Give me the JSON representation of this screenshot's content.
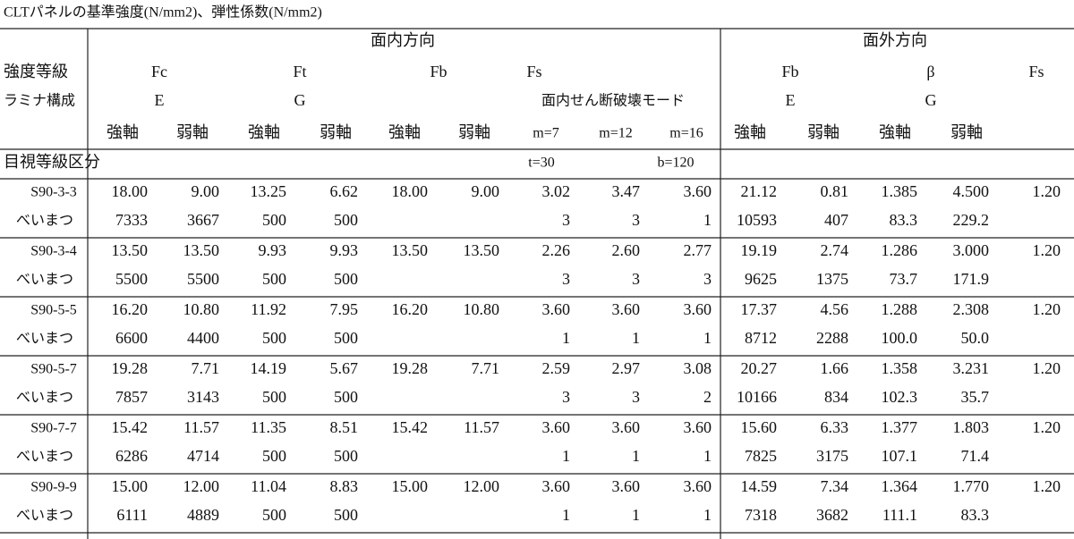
{
  "title": "CLTパネルの基準強度(N/mm2)、弾性係数(N/mm2)",
  "header": {
    "groups": [
      "面内方向",
      "面外方向"
    ],
    "row1": [
      "強度等級",
      "Fc",
      "Ft",
      "Fb",
      "Fs",
      "Fb",
      "β",
      "Fs"
    ],
    "row2": [
      "ラミナ構成",
      "E",
      "G",
      "面内せん断破壊モード",
      "E",
      "G"
    ],
    "row3": [
      "強軸",
      "弱軸",
      "強軸",
      "弱軸",
      "強軸",
      "弱軸",
      "m=7",
      "m=12",
      "m=16",
      "強軸",
      "弱軸",
      "強軸",
      "弱軸"
    ],
    "row4": [
      "目視等級区分",
      "t=30",
      "b=120"
    ]
  },
  "rows": [
    {
      "grade": "S90-3-3",
      "species": "べいまつ",
      "strength": [
        "18.00",
        "9.00",
        "13.25",
        "6.62",
        "18.00",
        "9.00",
        "3.02",
        "3.47",
        "3.60",
        "21.12",
        "0.81",
        "1.385",
        "4.500",
        "1.20"
      ],
      "modulus": [
        "7333",
        "3667",
        "500",
        "500",
        null,
        null,
        "3",
        "3",
        "1",
        "10593",
        "407",
        "83.3",
        "229.2",
        null
      ]
    },
    {
      "grade": "S90-3-4",
      "species": "べいまつ",
      "strength": [
        "13.50",
        "13.50",
        "9.93",
        "9.93",
        "13.50",
        "13.50",
        "2.26",
        "2.60",
        "2.77",
        "19.19",
        "2.74",
        "1.286",
        "3.000",
        "1.20"
      ],
      "modulus": [
        "5500",
        "5500",
        "500",
        "500",
        null,
        null,
        "3",
        "3",
        "3",
        "9625",
        "1375",
        "73.7",
        "171.9",
        null
      ]
    },
    {
      "grade": "S90-5-5",
      "species": "べいまつ",
      "strength": [
        "16.20",
        "10.80",
        "11.92",
        "7.95",
        "16.20",
        "10.80",
        "3.60",
        "3.60",
        "3.60",
        "17.37",
        "4.56",
        "1.288",
        "2.308",
        "1.20"
      ],
      "modulus": [
        "6600",
        "4400",
        "500",
        "500",
        null,
        null,
        "1",
        "1",
        "1",
        "8712",
        "2288",
        "100.0",
        "50.0",
        null
      ]
    },
    {
      "grade": "S90-5-7",
      "species": "べいまつ",
      "strength": [
        "19.28",
        "7.71",
        "14.19",
        "5.67",
        "19.28",
        "7.71",
        "2.59",
        "2.97",
        "3.08",
        "20.27",
        "1.66",
        "1.358",
        "3.231",
        "1.20"
      ],
      "modulus": [
        "7857",
        "3143",
        "500",
        "500",
        null,
        null,
        "3",
        "3",
        "2",
        "10166",
        "834",
        "102.3",
        "35.7",
        null
      ]
    },
    {
      "grade": "S90-7-7",
      "species": "べいまつ",
      "strength": [
        "15.42",
        "11.57",
        "11.35",
        "8.51",
        "15.42",
        "11.57",
        "3.60",
        "3.60",
        "3.60",
        "15.60",
        "6.33",
        "1.377",
        "1.803",
        "1.20"
      ],
      "modulus": [
        "6286",
        "4714",
        "500",
        "500",
        null,
        null,
        "1",
        "1",
        "1",
        "7825",
        "3175",
        "107.1",
        "71.4",
        null
      ]
    },
    {
      "grade": "S90-9-9",
      "species": "べいまつ",
      "strength": [
        "15.00",
        "12.00",
        "11.04",
        "8.83",
        "15.00",
        "12.00",
        "3.60",
        "3.60",
        "3.60",
        "14.59",
        "7.34",
        "1.364",
        "1.770",
        "1.20"
      ],
      "modulus": [
        "6111",
        "4889",
        "500",
        "500",
        null,
        null,
        "1",
        "1",
        "1",
        "7318",
        "3682",
        "111.1",
        "83.3",
        null
      ]
    }
  ]
}
